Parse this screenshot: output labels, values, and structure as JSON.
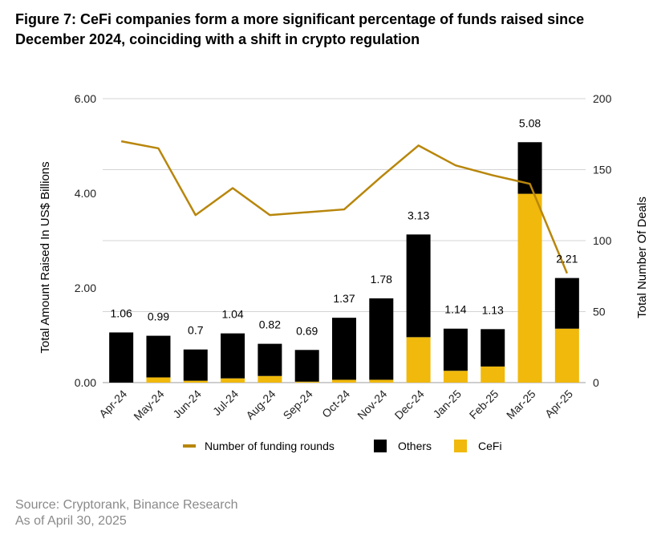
{
  "title": {
    "line1": "Figure 7: CeFi companies form a more significant percentage of funds raised since",
    "line2": "December 2024, coinciding with a shift in crypto regulation"
  },
  "chart_data": {
    "type": "bar",
    "stacked": true,
    "categories": [
      "Apr-24",
      "May-24",
      "Jun-24",
      "Jul-24",
      "Aug-24",
      "Sep-24",
      "Oct-24",
      "Nov-24",
      "Dec-24",
      "Jan-25",
      "Feb-25",
      "Mar-25",
      "Apr-25"
    ],
    "totals": [
      1.06,
      0.99,
      0.7,
      1.04,
      0.82,
      0.69,
      1.37,
      1.78,
      3.13,
      1.14,
      1.13,
      5.08,
      2.21
    ],
    "total_labels": [
      "1.06",
      "0.99",
      "0.7",
      "1.04",
      "0.82",
      "0.69",
      "1.37",
      "1.78",
      "3.13",
      "1.14",
      "1.13",
      "5.08",
      "2.21"
    ],
    "series": [
      {
        "name": "CeFi",
        "axis": "left",
        "color": "#F0B90B",
        "values": [
          0.0,
          0.11,
          0.04,
          0.09,
          0.14,
          0.02,
          0.06,
          0.06,
          0.96,
          0.25,
          0.34,
          3.99,
          1.14
        ]
      },
      {
        "name": "Others",
        "axis": "left",
        "color": "#000000",
        "values": [
          1.06,
          0.88,
          0.66,
          0.95,
          0.68,
          0.67,
          1.31,
          1.72,
          2.17,
          0.89,
          0.79,
          1.09,
          1.07
        ]
      },
      {
        "name": "Number of funding rounds",
        "type": "line",
        "axis": "right",
        "color": "#B8860B",
        "values": [
          170,
          165,
          118,
          137,
          118,
          120,
          122,
          145,
          167,
          153,
          146,
          140,
          77
        ]
      }
    ],
    "left_axis": {
      "label": "Total Amount Raised In US$ Billions",
      "ylim": [
        0,
        6
      ],
      "ticks": [
        "0.00",
        "2.00",
        "4.00",
        "6.00"
      ],
      "tick_values": [
        0,
        2,
        4,
        6
      ]
    },
    "right_axis": {
      "label": "Total Number Of Deals",
      "ylim": [
        0,
        200
      ],
      "ticks": [
        "0",
        "50",
        "100",
        "150",
        "200"
      ],
      "tick_values": [
        0,
        50,
        100,
        150,
        200
      ]
    },
    "legend": {
      "position": "bottom",
      "items": [
        {
          "label": "Number of funding rounds",
          "kind": "line",
          "color": "#B8860B"
        },
        {
          "label": "Others",
          "kind": "box",
          "color": "#000000"
        },
        {
          "label": "CeFi",
          "kind": "box",
          "color": "#F0B90B"
        }
      ]
    },
    "grid": true
  },
  "source": {
    "line1": "Source: Cryptorank, Binance Research",
    "line2": "As of April 30, 2025"
  }
}
